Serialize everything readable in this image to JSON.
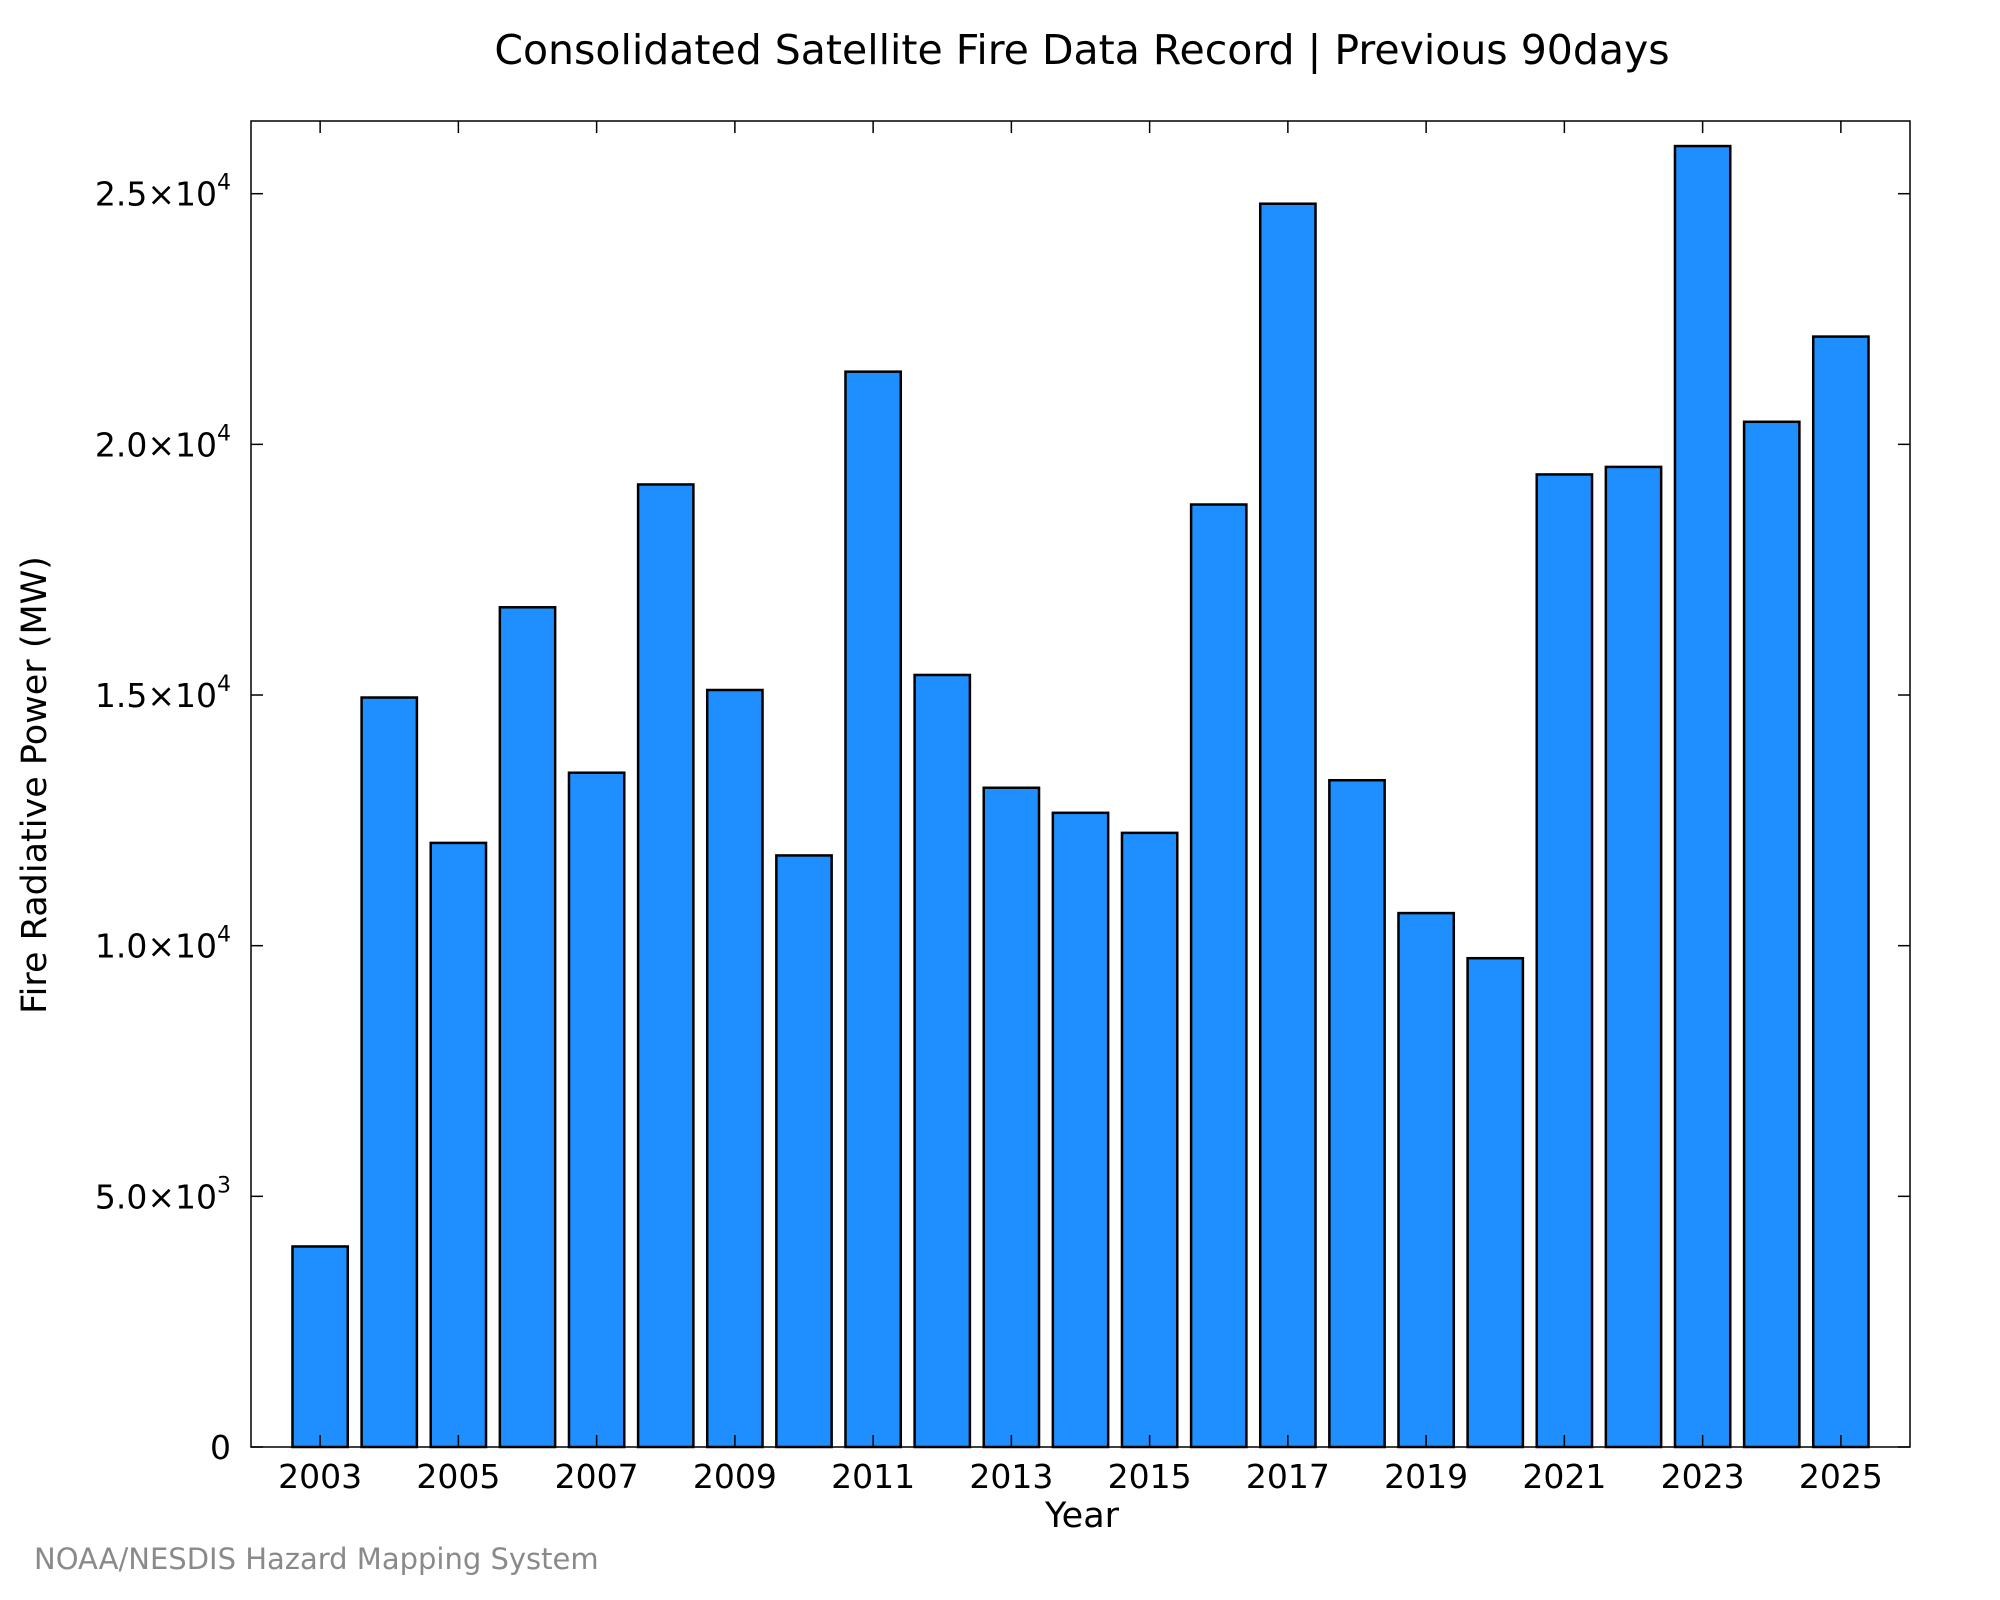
{
  "chart_data": {
    "type": "bar",
    "title": "Consolidated Satellite Fire Data Record | Previous 90days",
    "xlabel": "Year",
    "ylabel": "Fire Radiative Power (MW)",
    "categories": [
      2003,
      2004,
      2005,
      2006,
      2007,
      2008,
      2009,
      2010,
      2011,
      2012,
      2013,
      2014,
      2015,
      2016,
      2017,
      2018,
      2019,
      2020,
      2021,
      2022,
      2023,
      2024,
      2025
    ],
    "values": [
      4000,
      14950,
      12050,
      16750,
      13450,
      19200,
      15100,
      11800,
      21450,
      15400,
      13150,
      12650,
      12250,
      18800,
      24800,
      13300,
      10650,
      9750,
      19400,
      19550,
      25950,
      20450,
      22150
    ],
    "xticks": [
      "2003",
      "2005",
      "2007",
      "2009",
      "2011",
      "2013",
      "2015",
      "2017",
      "2019",
      "2021",
      "2023",
      "2025"
    ],
    "yticks": [
      {
        "value": 0,
        "mantissa": "0",
        "exponent": ""
      },
      {
        "value": 5000,
        "mantissa": "5.0×10",
        "exponent": "3"
      },
      {
        "value": 10000,
        "mantissa": "1.0×10",
        "exponent": "4"
      },
      {
        "value": 15000,
        "mantissa": "1.5×10",
        "exponent": "4"
      },
      {
        "value": 20000,
        "mantissa": "2.0×10",
        "exponent": "4"
      },
      {
        "value": 25000,
        "mantissa": "2.5×10",
        "exponent": "4"
      }
    ],
    "xlim": [
      2002.0,
      2026.0
    ],
    "ylim": [
      0,
      26450
    ],
    "grid": false,
    "bar_color": "#1f8fff",
    "bar_edge_color": "#000000"
  },
  "footer": {
    "credit": "NOAA/NESDIS Hazard Mapping System"
  }
}
